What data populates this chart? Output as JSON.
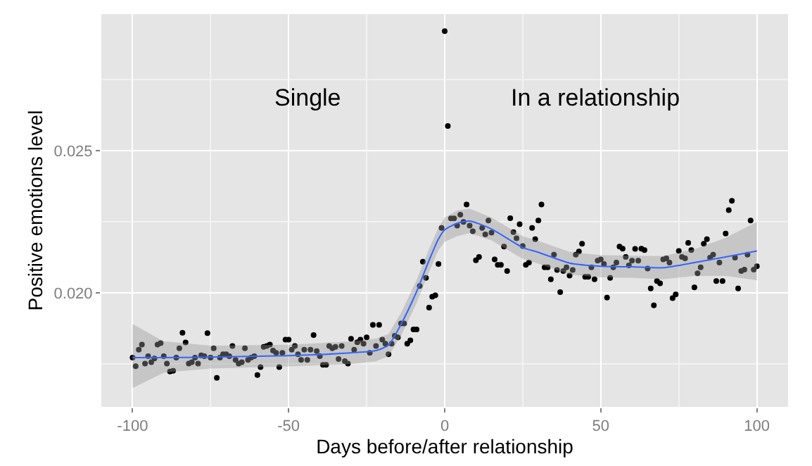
{
  "chart_data": {
    "type": "scatter",
    "xlabel": "Days before/after relationship",
    "ylabel": "Positive emotions level",
    "xlim": [
      -110,
      110
    ],
    "xticks": [
      -100,
      -50,
      0,
      50,
      100
    ],
    "ylim": [
      0.016,
      0.0298
    ],
    "yticks": [
      {
        "value": 0.02,
        "label": "0.020"
      },
      {
        "value": 0.025,
        "label": "0.025"
      }
    ],
    "grid": true,
    "annotations": [
      "Single",
      "In a relationship"
    ],
    "series": [
      {
        "color": "#000000",
        "marker": "circle",
        "x": [
          -100,
          -99,
          -98,
          -97,
          -96,
          -95,
          -94,
          -93,
          -92,
          -91,
          -90,
          -89,
          -88,
          -87,
          -86,
          -85,
          -84,
          -83,
          -82,
          -81,
          -80,
          -79,
          -78,
          -77,
          -76,
          -75,
          -74,
          -73,
          -72,
          -71,
          -70,
          -69,
          -68,
          -67,
          -66,
          -65,
          -64,
          -63,
          -62,
          -61,
          -60,
          -59,
          -58,
          -57,
          -56,
          -55,
          -54,
          -53,
          -52,
          -51,
          -50,
          -49,
          -48,
          -47,
          -46,
          -45,
          -44,
          -43,
          -42,
          -41,
          -40,
          -39,
          -38,
          -37,
          -36,
          -35,
          -34,
          -33,
          -32,
          -31,
          -30,
          -29,
          -28,
          -27,
          -26,
          -25,
          -24,
          -23,
          -22,
          -21,
          -20,
          -19,
          -18,
          -17,
          -16,
          -15,
          -14,
          -13,
          -12,
          -11,
          -10,
          -9,
          -8,
          -7,
          -6,
          -5,
          -4,
          -3,
          -2,
          -1,
          0,
          1,
          2,
          3,
          4,
          5,
          6,
          7,
          8,
          9,
          10,
          11,
          12,
          13,
          14,
          15,
          16,
          17,
          18,
          19,
          20,
          21,
          22,
          23,
          24,
          25,
          26,
          27,
          28,
          29,
          30,
          31,
          32,
          33,
          34,
          35,
          36,
          37,
          38,
          39,
          40,
          41,
          42,
          43,
          44,
          45,
          46,
          47,
          48,
          49,
          50,
          51,
          52,
          53,
          54,
          55,
          56,
          57,
          58,
          59,
          60,
          61,
          62,
          63,
          64,
          65,
          66,
          67,
          68,
          69,
          70,
          71,
          72,
          73,
          74,
          75,
          76,
          77,
          78,
          79,
          80,
          81,
          82,
          83,
          84,
          85,
          86,
          87,
          88,
          89,
          90,
          91,
          92,
          93,
          94,
          95,
          96,
          97,
          98,
          99,
          100
        ],
        "values": [
          0.01773,
          0.01743,
          0.01801,
          0.01819,
          0.01752,
          0.01778,
          0.01757,
          0.0177,
          0.01819,
          0.01824,
          0.01778,
          0.01752,
          0.01724,
          0.01727,
          0.01773,
          0.01806,
          0.0186,
          0.01826,
          0.01752,
          0.01757,
          0.01773,
          0.01752,
          0.01781,
          0.01778,
          0.01859,
          0.01773,
          0.01806,
          0.01702,
          0.01773,
          0.01785,
          0.01785,
          0.01778,
          0.01814,
          0.01765,
          0.01752,
          0.01757,
          0.01806,
          0.01765,
          0.01773,
          0.01778,
          0.01712,
          0.0174,
          0.01811,
          0.01814,
          0.01819,
          0.01798,
          0.0179,
          0.0174,
          0.0179,
          0.01836,
          0.01836,
          0.01801,
          0.01814,
          0.01785,
          0.01765,
          0.01801,
          0.01765,
          0.01801,
          0.01852,
          0.01796,
          0.01778,
          0.01748,
          0.01748,
          0.01814,
          0.01806,
          0.01811,
          0.01768,
          0.01814,
          0.01761,
          0.01752,
          0.01839,
          0.01801,
          0.01827,
          0.01836,
          0.01822,
          0.01844,
          0.0179,
          0.01888,
          0.01814,
          0.01888,
          0.01836,
          0.01822,
          0.01785,
          0.01822,
          0.0185,
          0.01844,
          0.01893,
          0.01893,
          0.01822,
          0.01834,
          0.01872,
          0.01872,
          0.02025,
          0.0211,
          0.02053,
          0.01949,
          0.01987,
          0.01992,
          0.02102,
          0.02229,
          0.0292,
          0.02587,
          0.02262,
          0.02262,
          0.02237,
          0.02275,
          0.0225,
          0.02311,
          0.02237,
          0.02217,
          0.02115,
          0.02127,
          0.02229,
          0.02206,
          0.02255,
          0.02212,
          0.02118,
          0.02099,
          0.02099,
          0.02163,
          0.02077,
          0.02263,
          0.02214,
          0.02192,
          0.02242,
          0.02165,
          0.02099,
          0.02107,
          0.02229,
          0.02189,
          0.02255,
          0.02311,
          0.0209,
          0.0209,
          0.02048,
          0.02135,
          0.02081,
          0.02003,
          0.02077,
          0.0209,
          0.02061,
          0.02081,
          0.02135,
          0.02146,
          0.02173,
          0.02057,
          0.02057,
          0.0209,
          0.02048,
          0.02114,
          0.02118,
          0.02102,
          0.01984,
          0.02053,
          0.0209,
          0.02107,
          0.02163,
          0.02156,
          0.02127,
          0.02097,
          0.02114,
          0.02155,
          0.02114,
          0.02156,
          0.02151,
          0.02086,
          0.02016,
          0.01957,
          0.02042,
          0.02034,
          0.02118,
          0.02122,
          0.02107,
          0.01982,
          0.01995,
          0.02148,
          0.02127,
          0.02122,
          0.02176,
          0.02151,
          0.0202,
          0.02069,
          0.0209,
          0.02173,
          0.02189,
          0.02124,
          0.02135,
          0.02042,
          0.02107,
          0.02042,
          0.02209,
          0.02291,
          0.02324,
          0.02124,
          0.02016,
          0.02077,
          0.02082,
          0.02135,
          0.02255,
          0.02082,
          0.02094
        ]
      },
      {
        "type": "line",
        "color": "#3366ff",
        "marker": "none",
        "line_style": "solid",
        "x": [
          -100,
          -90,
          -75,
          -50,
          -30,
          -22,
          -18,
          -14,
          -9,
          -5,
          -2,
          0,
          4,
          8,
          15,
          25,
          30,
          40,
          50,
          60,
          70,
          80,
          90,
          100
        ],
        "values": [
          0.01773,
          0.01773,
          0.01775,
          0.0178,
          0.0179,
          0.01798,
          0.01817,
          0.0189,
          0.02005,
          0.02115,
          0.0219,
          0.02222,
          0.02245,
          0.02253,
          0.02225,
          0.0216,
          0.02143,
          0.02105,
          0.02094,
          0.02092,
          0.02089,
          0.02107,
          0.02127,
          0.02148
        ],
        "lower": [
          0.01666,
          0.0172,
          0.01735,
          0.01742,
          0.0175,
          0.0176,
          0.01778,
          0.0185,
          0.01965,
          0.02075,
          0.0215,
          0.0218,
          0.022,
          0.0221,
          0.02185,
          0.0212,
          0.02103,
          0.02065,
          0.02055,
          0.02053,
          0.02048,
          0.0206,
          0.0206,
          0.02045
        ],
        "upper": [
          0.01891,
          0.0183,
          0.01815,
          0.01818,
          0.0183,
          0.0184,
          0.01856,
          0.0193,
          0.02045,
          0.02155,
          0.0223,
          0.02265,
          0.0229,
          0.02296,
          0.02265,
          0.022,
          0.02183,
          0.02145,
          0.02133,
          0.02131,
          0.0213,
          0.02154,
          0.02194,
          0.0225
        ]
      }
    ]
  }
}
